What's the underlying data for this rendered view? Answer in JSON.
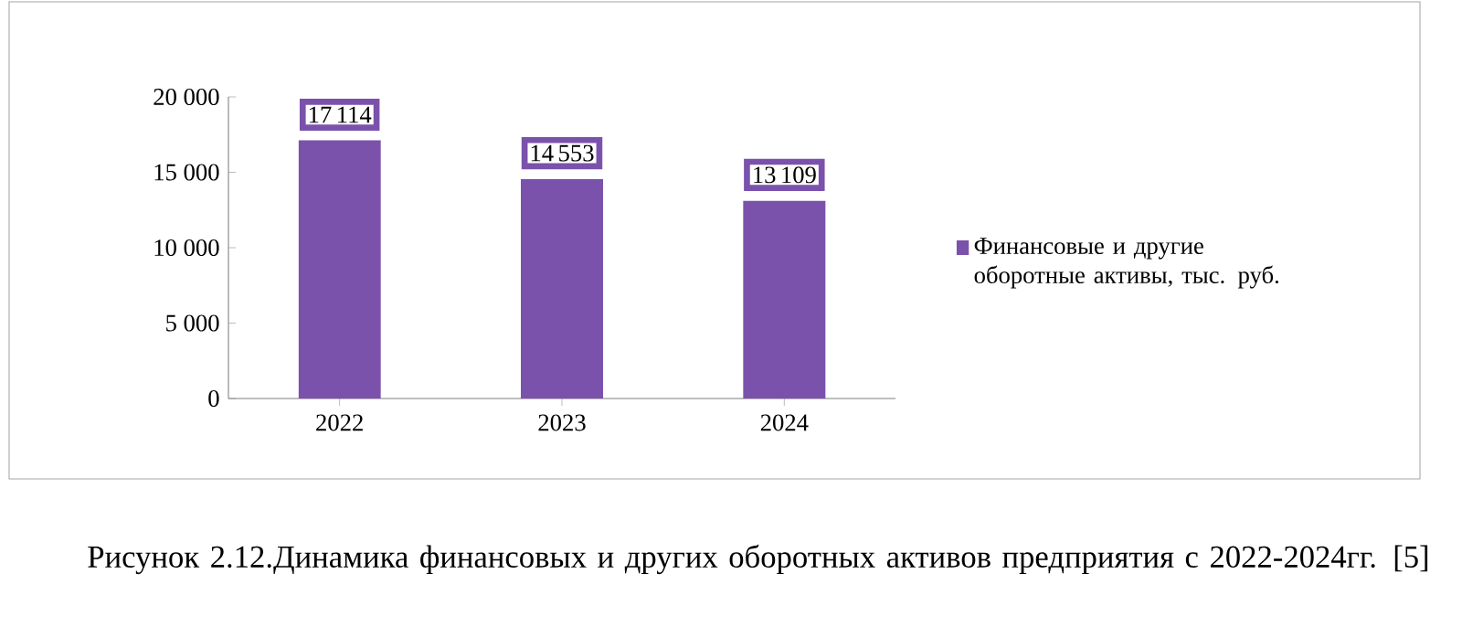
{
  "chart_data": {
    "type": "bar",
    "title": "Рисунок 2.12.Динамика финансовых и других оборотных активов предприятия с 2022-2024гг. [5]",
    "categories": [
      "2022",
      "2023",
      "2024"
    ],
    "series": [
      {
        "name": "Финансовые и другие оборотные активы, тыс. руб.",
        "color": "#7b52ab",
        "values": [
          17114,
          14553,
          13109
        ]
      }
    ],
    "ylim": [
      0,
      20000
    ],
    "yticks": [
      {
        "value": 0,
        "label": "0"
      },
      {
        "value": 5000,
        "label": "5 000"
      },
      {
        "value": 10000,
        "label": "10 000"
      },
      {
        "value": 15000,
        "label": "15 000"
      },
      {
        "value": 20000,
        "label": "20 000"
      }
    ],
    "data_labels": true,
    "legend": "right",
    "grid": false
  }
}
